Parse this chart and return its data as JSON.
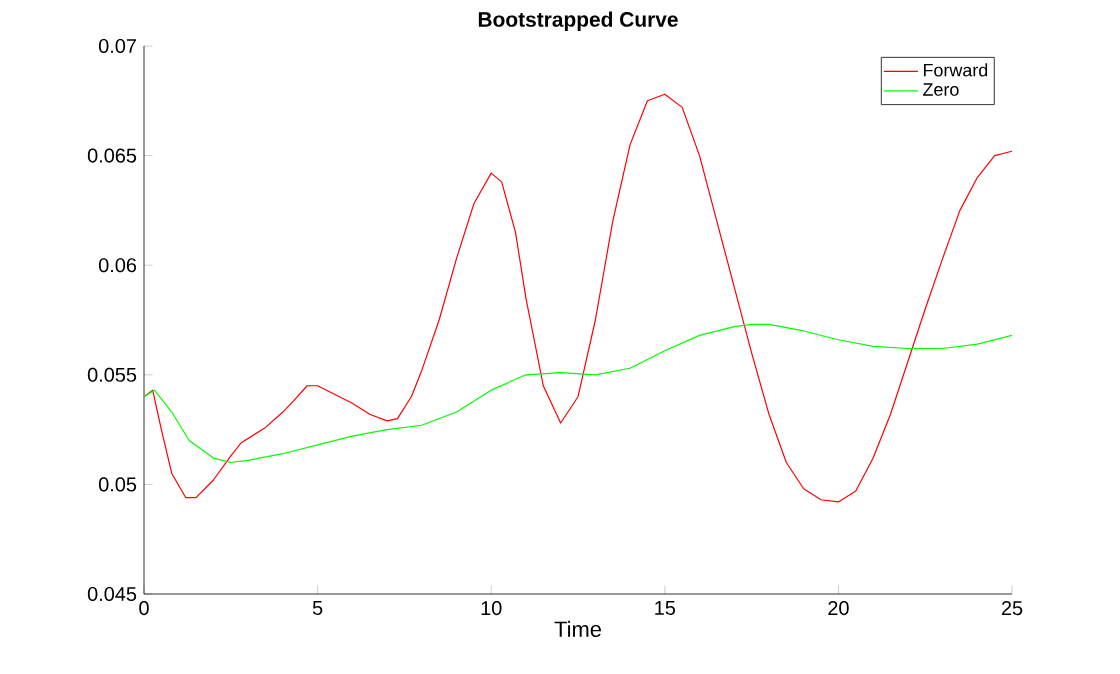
{
  "chart_data": {
    "type": "line",
    "title": "Bootstrapped Curve",
    "xlabel": "Time",
    "xlim": [
      0,
      25
    ],
    "xticks": [
      0,
      5,
      10,
      15,
      20,
      25
    ],
    "ylim": [
      0.045,
      0.07
    ],
    "yticks": [
      0.045,
      0.05,
      0.055,
      0.06,
      0.065,
      0.07
    ],
    "grid": false,
    "legend": "top right",
    "marker": "none",
    "line_style": "solid",
    "series": [
      {
        "name": "Forward",
        "color": "#ff0000",
        "x": [
          0,
          0.25,
          0.5,
          0.8,
          1.2,
          1.5,
          2,
          2.5,
          2.8,
          3.5,
          4,
          4.3,
          4.7,
          5,
          5.5,
          6,
          6.5,
          7,
          7.3,
          7.7,
          8,
          8.5,
          9,
          9.5,
          10,
          10.3,
          10.7,
          11,
          11.5,
          12,
          12.5,
          13,
          13.5,
          14,
          14.5,
          15,
          15.5,
          16,
          16.5,
          17,
          17.5,
          18,
          18.5,
          19,
          19.5,
          20,
          20.5,
          21,
          21.5,
          22,
          22.5,
          23,
          23.5,
          24,
          24.5,
          25
        ],
        "values": [
          0.054,
          0.0543,
          0.0525,
          0.0505,
          0.0494,
          0.0494,
          0.0502,
          0.0513,
          0.0519,
          0.0526,
          0.0533,
          0.0538,
          0.0545,
          0.0545,
          0.0541,
          0.0537,
          0.0532,
          0.0529,
          0.053,
          0.054,
          0.0552,
          0.0575,
          0.0603,
          0.0628,
          0.0642,
          0.0638,
          0.0615,
          0.0585,
          0.0545,
          0.0528,
          0.054,
          0.0575,
          0.062,
          0.0655,
          0.0675,
          0.0678,
          0.0672,
          0.065,
          0.062,
          0.059,
          0.056,
          0.0532,
          0.051,
          0.0498,
          0.0493,
          0.0492,
          0.0497,
          0.0512,
          0.0532,
          0.0556,
          0.058,
          0.0603,
          0.0625,
          0.064,
          0.065,
          0.0652
        ]
      },
      {
        "name": "Zero",
        "color": "#00ff00",
        "x": [
          0,
          0.3,
          0.8,
          1.3,
          2,
          2.5,
          3,
          4,
          5,
          6,
          7,
          8,
          9,
          10,
          11,
          12,
          13,
          14,
          15,
          16,
          17,
          17.5,
          18,
          19,
          20,
          21,
          22,
          23,
          24,
          25
        ],
        "values": [
          0.054,
          0.0543,
          0.0533,
          0.052,
          0.0512,
          0.051,
          0.0511,
          0.0514,
          0.0518,
          0.0522,
          0.0525,
          0.0527,
          0.0533,
          0.0543,
          0.055,
          0.0551,
          0.055,
          0.0553,
          0.0561,
          0.0568,
          0.0572,
          0.0573,
          0.0573,
          0.057,
          0.0566,
          0.0563,
          0.0562,
          0.0562,
          0.0564,
          0.0568
        ]
      }
    ]
  }
}
